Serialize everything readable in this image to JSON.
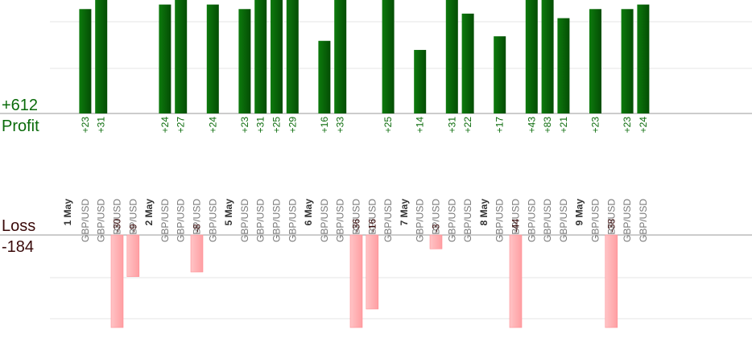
{
  "chart_data": {
    "type": "bar",
    "layout": "profit-loss-split",
    "profit": {
      "label": "Profit",
      "total_label": "+612",
      "color": "#0a6b0a",
      "ylim": [
        0,
        25
      ]
    },
    "loss": {
      "label": "Loss",
      "total_label": "-184",
      "color": "#ffb3b5",
      "ylim": [
        0,
        20
      ]
    },
    "slots": [
      {
        "pair": "GBP/USD",
        "value": 23
      },
      {
        "pair": "GBP/USD",
        "value": 31
      },
      {
        "pair": "GBP/USD",
        "value": -30
      },
      {
        "pair": "GBP/USD",
        "value": -9
      },
      {
        "date": "2 May"
      },
      {
        "pair": "GBP/USD",
        "value": 24
      },
      {
        "pair": "GBP/USD",
        "value": 27
      },
      {
        "pair": "GBP/USD",
        "value": -8
      },
      {
        "pair": "GBP/USD",
        "value": 24
      },
      {
        "date": "5 May"
      },
      {
        "pair": "GBP/USD",
        "value": 23
      },
      {
        "pair": "GBP/USD",
        "value": 31
      },
      {
        "pair": "GBP/USD",
        "value": 25
      },
      {
        "pair": "GBP/USD",
        "value": 29
      },
      {
        "date": "6 May"
      },
      {
        "pair": "GBP/USD",
        "value": 16
      },
      {
        "pair": "GBP/USD",
        "value": 33
      },
      {
        "pair": "GBP/USD",
        "value": -36
      },
      {
        "pair": "GBP/USD",
        "value": -16
      },
      {
        "pair": "GBP/USD",
        "value": 25
      },
      {
        "date": "7 May"
      },
      {
        "pair": "GBP/USD",
        "value": 14
      },
      {
        "pair": "GBP/USD",
        "value": -3
      },
      {
        "pair": "GBP/USD",
        "value": 31
      },
      {
        "pair": "GBP/USD",
        "value": 22
      },
      {
        "date": "8 May"
      },
      {
        "pair": "GBP/USD",
        "value": 17
      },
      {
        "pair": "GBP/USD",
        "value": -44
      },
      {
        "pair": "GBP/USD",
        "value": 43
      },
      {
        "pair": "GBP/USD",
        "value": 83
      },
      {
        "pair": "GBP/USD",
        "value": 21
      },
      {
        "date": "9 May"
      },
      {
        "pair": "GBP/USD",
        "value": 23
      },
      {
        "pair": "GBP/USD",
        "value": -38
      },
      {
        "pair": "GBP/USD",
        "value": 23
      },
      {
        "pair": "GBP/USD",
        "value": 24
      }
    ],
    "first_date": "1 May",
    "grid": true,
    "legend": "none"
  }
}
